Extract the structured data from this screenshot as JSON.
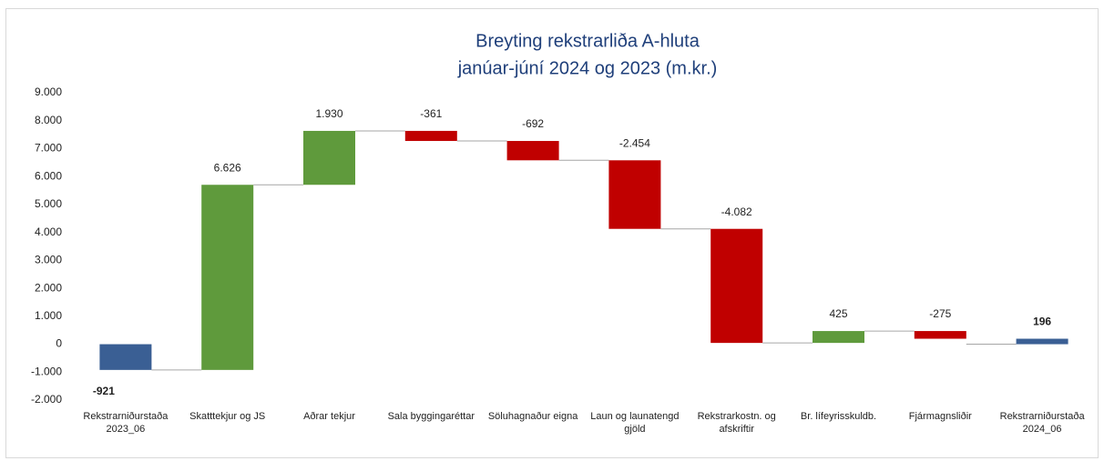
{
  "chart_data": {
    "type": "waterfall",
    "title": [
      "Breyting rekstrarliða A-hluta",
      "janúar-júní 2024 og 2023 (m.kr.)"
    ],
    "categories": [
      "Rekstrarniðurstaða 2023_06",
      "Skatttekjur og JS",
      "Aðrar tekjur",
      "Sala byggingaréttar",
      "Söluhagnaður eigna",
      "Laun og launatengd gjöld",
      "Rekstrarkostn. og afskriftir",
      "Br. lífeyrisskuldb.",
      "Fjármagnsliðir",
      "Rekstrarniðurstaða 2024_06"
    ],
    "measure": [
      "total",
      "relative",
      "relative",
      "relative",
      "relative",
      "relative",
      "relative",
      "relative",
      "relative",
      "total"
    ],
    "values": [
      -921,
      6626,
      1930,
      -361,
      -692,
      -2454,
      -4082,
      425,
      -275,
      196
    ],
    "value_labels": [
      "-921",
      "6.626",
      "1.930",
      "-361",
      "-692",
      "-2.454",
      "-4.082",
      "425",
      "-275",
      "196"
    ],
    "colors": {
      "total": "#3a5f94",
      "increase": "#5f9a3c",
      "decrease": "#c00000"
    },
    "ylim": [
      -2000,
      9000
    ],
    "yticks": [
      {
        "value": -2000,
        "label": "-2.000"
      },
      {
        "value": -1000,
        "label": "-1.000"
      },
      0,
      {
        "value": 1000,
        "label": "1.000"
      },
      {
        "value": 2000,
        "label": "2.000"
      },
      {
        "value": 3000,
        "label": "3.000"
      },
      {
        "value": 4000,
        "label": "4.000"
      },
      {
        "value": 5000,
        "label": "5.000"
      },
      {
        "value": 6000,
        "label": "6.000"
      },
      {
        "value": 7000,
        "label": "7.000"
      },
      {
        "value": 8000,
        "label": "8.000"
      },
      {
        "value": 9000,
        "label": "9.000"
      }
    ],
    "grid": false
  }
}
